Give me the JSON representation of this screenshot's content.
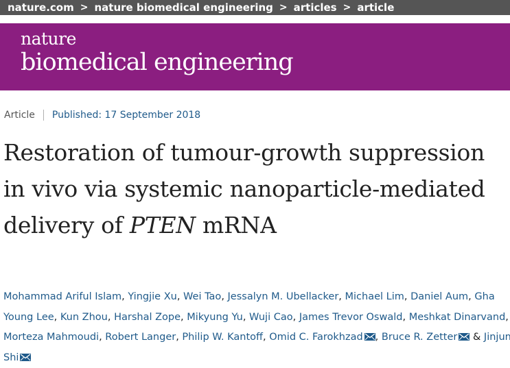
{
  "breadcrumb": {
    "items": [
      "nature.com",
      "nature biomedical engineering",
      "articles",
      "article"
    ],
    "separator": ">"
  },
  "masthead": {
    "line1": "nature",
    "line2": "biomedical engineering",
    "background": "#8b1e80"
  },
  "meta": {
    "type": "Article",
    "published": "Published: 17 September 2018"
  },
  "title": {
    "main": "Restoration of tumour-growth suppression in vivo via systemic nanoparticle-mediated delivery of ",
    "italic": "PTEN",
    "tail": " mRNA"
  },
  "authors": [
    {
      "name": "Mohammad Ariful Islam"
    },
    {
      "name": "Yingjie Xu"
    },
    {
      "name": "Wei Tao"
    },
    {
      "name": "Jessalyn M. Ubellacker"
    },
    {
      "name": "Michael Lim"
    },
    {
      "name": "Daniel Aum"
    },
    {
      "name": "Gha Young Lee"
    },
    {
      "name": "Kun Zhou"
    },
    {
      "name": "Harshal Zope"
    },
    {
      "name": "Mikyung Yu"
    },
    {
      "name": "Wuji Cao"
    },
    {
      "name": "James Trevor Oswald"
    },
    {
      "name": "Meshkat Dinarvand"
    },
    {
      "name": "Morteza Mahmoudi"
    },
    {
      "name": "Robert Langer"
    },
    {
      "name": "Philip W. Kantoff"
    },
    {
      "name": "Omid C. Farokhzad",
      "corresponding": true
    },
    {
      "name": "Bruce R. Zetter",
      "corresponding": true
    },
    {
      "name": "Jinjun Shi",
      "corresponding": true
    }
  ],
  "authors_separator": ", ",
  "authors_final_separator": " & ",
  "icons": {
    "corresponding": "mail-icon"
  },
  "colors": {
    "link": "#1f5a8a",
    "breadcrumb_bg": "#555555"
  }
}
